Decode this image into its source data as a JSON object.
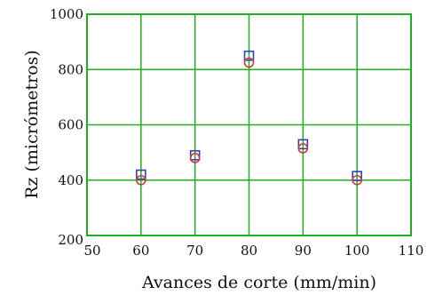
{
  "chart_data": {
    "type": "scatter",
    "title": "",
    "xlabel": "Avances de corte (mm/min)",
    "ylabel": "Rz (micrómetros)",
    "xlim": [
      50,
      110
    ],
    "ylim": [
      200,
      1000
    ],
    "x_ticks": [
      50,
      60,
      70,
      80,
      90,
      100,
      110
    ],
    "y_ticks": [
      200,
      400,
      600,
      800,
      1000
    ],
    "grid": true,
    "grid_color": "#22b022",
    "frame_color": "#22b022",
    "series": [
      {
        "marker": "square",
        "color": "#3340c0",
        "x": [
          60,
          70,
          80,
          90,
          100
        ],
        "y": [
          420,
          490,
          850,
          530,
          415
        ]
      },
      {
        "marker": "circle",
        "color": "#d03a3a",
        "x": [
          60,
          70,
          80,
          90,
          100
        ],
        "y": [
          400,
          480,
          825,
          515,
          400
        ]
      }
    ]
  }
}
